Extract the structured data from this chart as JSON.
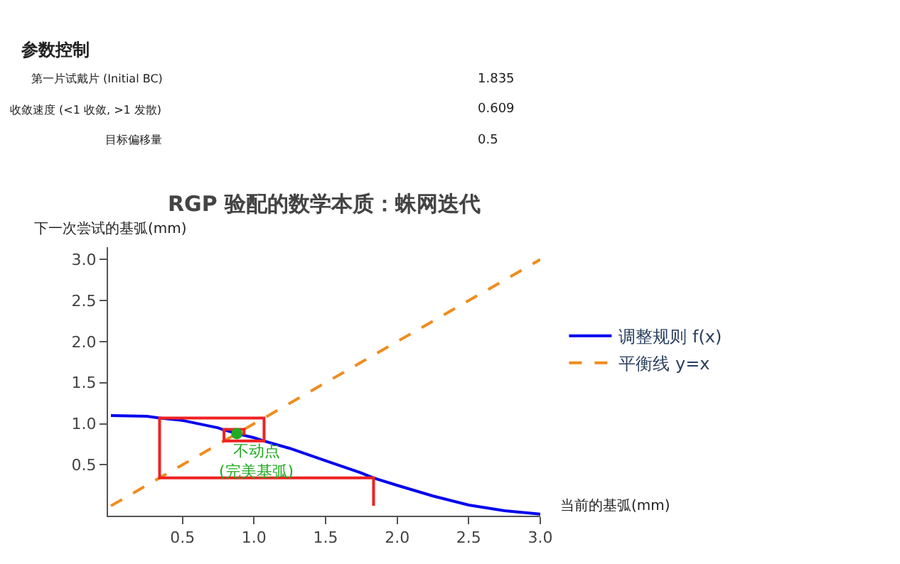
{
  "chart_data": {
    "type": "line",
    "title": "RGP 验配的数学本质：蛛网迭代",
    "xlabel": "当前的基弧(mm)",
    "ylabel": "下一次尝试的基弧(mm)",
    "xlim": [
      -0.02,
      3.0
    ],
    "ylim": [
      -0.12,
      3.15
    ],
    "xticks": [
      0.5,
      {
        "value": 1,
        "label": "1.0"
      },
      1.5,
      {
        "value": 2,
        "label": "2.0"
      },
      2.5,
      {
        "value": 3,
        "label": "3.0"
      }
    ],
    "yticks": [
      0.5,
      {
        "value": 1,
        "label": "1.0"
      },
      1.5,
      {
        "value": 2,
        "label": "2.0"
      },
      2.5,
      {
        "value": 3,
        "label": "3.0"
      }
    ],
    "legend": "right",
    "series": [
      {
        "name": "调整规则 f(x)",
        "color": "#0000ee",
        "line_style": "solid",
        "x": [
          0,
          0.25,
          0.34,
          0.5,
          0.75,
          0.78,
          0.88,
          1.0,
          1.07,
          1.25,
          1.5,
          1.75,
          1.835,
          2.0,
          2.25,
          2.5,
          2.75,
          3.0
        ],
        "values": [
          1.1,
          1.09,
          1.07,
          1.04,
          0.95,
          0.93,
          0.88,
          0.83,
          0.79,
          0.7,
          0.55,
          0.4,
          0.34,
          0.25,
          0.12,
          0.01,
          -0.06,
          -0.1
        ]
      },
      {
        "name": "平衡线 y=x",
        "color": "#f08c1e",
        "line_style": "dashed",
        "x": [
          0,
          3.0
        ],
        "values": [
          0,
          3.0
        ]
      },
      {
        "color": "#ee2222",
        "line_style": "solid",
        "x": [
          1.835,
          1.835,
          0.34,
          0.34,
          1.07,
          1.07,
          0.79,
          0.79,
          0.93,
          0.93
        ],
        "values": [
          0,
          0.34,
          0.34,
          1.07,
          1.07,
          0.79,
          0.79,
          0.93,
          0.93,
          0.86
        ]
      },
      {
        "type": "scatter",
        "marker": "circle",
        "color": "#22aa22",
        "x": [
          0.88
        ],
        "values": [
          0.88
        ]
      }
    ],
    "annotations": [
      {
        "text": "不动点\n(完美基弧)",
        "x": 0.88,
        "y": 0.88
      },
      "参数控制",
      "第一片试戴片 (Initial BC)",
      "1.835",
      "收敛速度 (<1 收敛, >1 发散)",
      "0.609",
      "目标偏移量",
      "0.5"
    ]
  }
}
